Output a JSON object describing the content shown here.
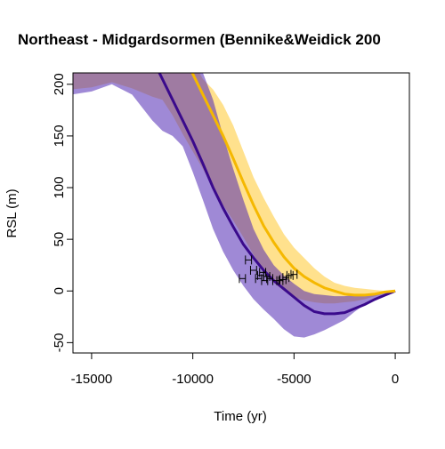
{
  "chart_data": {
    "type": "line",
    "title": "Northeast - Midgardsormen (Bennike&Weidick 200",
    "xlabel": "Time (yr)",
    "ylabel": "RSL (m)",
    "xlim": [
      -15920,
      700
    ],
    "ylim": [
      -60,
      211
    ],
    "xticks": [
      -15000,
      -10000,
      -5000,
      0
    ],
    "yticks": [
      -50,
      0,
      50,
      100,
      150,
      200
    ],
    "bands": [
      {
        "color": "#ffc830",
        "x": [
          -16000,
          -15000,
          -14000,
          -13000,
          -12000,
          -11500,
          -11000,
          -10500,
          -10000,
          -9500,
          -9000,
          -8500,
          -8000,
          -7500,
          -7000,
          -6500,
          -6000,
          -5500,
          -5000,
          -4500,
          -4000,
          -3500,
          -3000,
          -2500,
          -2000,
          -1500,
          -1000,
          -500,
          0
        ],
        "upper": [
          240,
          240,
          240,
          240,
          240,
          240,
          240,
          240,
          222,
          205,
          195,
          180,
          160,
          135,
          110,
          90,
          72,
          55,
          42,
          32,
          22,
          14,
          8,
          5,
          3,
          2,
          1,
          0,
          0
        ],
        "lower": [
          195,
          197,
          202,
          196,
          188,
          185,
          170,
          152,
          135,
          118,
          100,
          83,
          68,
          52,
          35,
          20,
          8,
          0,
          -6,
          -9,
          -11,
          -12,
          -12,
          -11,
          -10,
          -8,
          -5,
          -2,
          0
        ]
      },
      {
        "color": "#5028b4",
        "x": [
          -16000,
          -15000,
          -14000,
          -13000,
          -12000,
          -11500,
          -11000,
          -10500,
          -10000,
          -9500,
          -9000,
          -8500,
          -8000,
          -7500,
          -7000,
          -6500,
          -6000,
          -5500,
          -5000,
          -4500,
          -4000,
          -3500,
          -3000,
          -2500,
          -2000,
          -1500,
          -1000,
          -500,
          0
        ],
        "upper": [
          240,
          240,
          240,
          240,
          240,
          240,
          240,
          240,
          240,
          211,
          185,
          150,
          118,
          88,
          60,
          40,
          25,
          15,
          7,
          0,
          -3,
          -4,
          -5,
          -5,
          -4,
          -3,
          -2,
          -1,
          0
        ],
        "lower": [
          190,
          193,
          200,
          190,
          165,
          155,
          150,
          140,
          115,
          88,
          60,
          38,
          20,
          5,
          -8,
          -18,
          -27,
          -37,
          -44,
          -45,
          -42,
          -38,
          -33,
          -28,
          -20,
          -13,
          -7,
          -3,
          0
        ]
      }
    ],
    "series": [
      {
        "color": "#3a0a8c",
        "x": [
          -12000,
          -11500,
          -11000,
          -10500,
          -10000,
          -9500,
          -9000,
          -8500,
          -8000,
          -7500,
          -7000,
          -6500,
          -6000,
          -5500,
          -5000,
          -4500,
          -4000,
          -3500,
          -3000,
          -2500,
          -2000,
          -1500,
          -1000,
          -500,
          0
        ],
        "values": [
          225,
          205,
          185,
          165,
          145,
          123,
          100,
          80,
          62,
          45,
          32,
          20,
          10,
          2,
          -6,
          -14,
          -20,
          -22,
          -22,
          -21,
          -17,
          -13,
          -8,
          -4,
          0
        ]
      },
      {
        "color": "#f5b800",
        "x": [
          -10500,
          -10000,
          -9500,
          -9000,
          -8500,
          -8000,
          -7500,
          -7000,
          -6500,
          -6000,
          -5500,
          -5000,
          -4500,
          -4000,
          -3500,
          -3000,
          -2500,
          -2000,
          -1500,
          -1000,
          -500,
          0
        ],
        "values": [
          230,
          210,
          190,
          170,
          150,
          128,
          105,
          83,
          63,
          47,
          33,
          22,
          14,
          8,
          3,
          0,
          -3,
          -4,
          -4,
          -3,
          -1,
          0
        ]
      }
    ],
    "points": {
      "color": "#000000",
      "x": [
        -7550,
        -7250,
        -7000,
        -6750,
        -6650,
        -6550,
        -6450,
        -6350,
        -6200,
        -5900,
        -5700,
        -5550,
        -5400,
        -5200,
        -5000
      ],
      "values": [
        12,
        30,
        20,
        12,
        15,
        18,
        10,
        14,
        12,
        10,
        10,
        11,
        13,
        15,
        16
      ],
      "xerr": [
        150,
        150,
        150,
        150,
        150,
        150,
        150,
        150,
        150,
        150,
        150,
        150,
        150,
        150,
        150
      ]
    }
  }
}
